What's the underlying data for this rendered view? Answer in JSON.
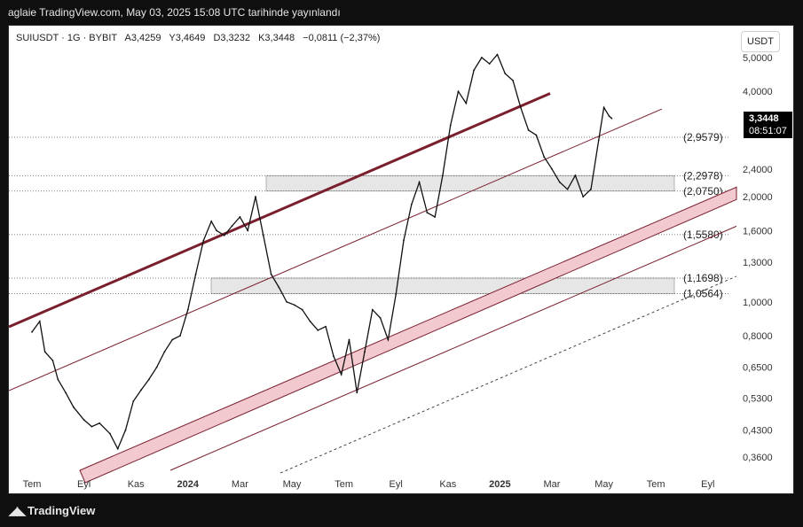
{
  "header": {
    "published": "aglaie TradingView.com, May 03, 2025 15:08 UTC tarihinde yayınlandı"
  },
  "legend": {
    "symbol": "SUIUSDT · 1G · BYBIT",
    "open": "A3,4259",
    "high": "Y3,4649",
    "low": "D3,3232",
    "close": "K3,3448",
    "change": "−0,0811 (−2,37%)"
  },
  "currency_button": "USDT",
  "last_price": {
    "value": "3,3448",
    "countdown": "08:51:07"
  },
  "footer": {
    "brand": "TradingView",
    "logo": "tradingview-logo-icon"
  },
  "colors": {
    "channel_top": "#7a1f2e",
    "band_fill": "#f2c9cf",
    "zone_fill": "#e6e6e6",
    "line": "#7a1f2e"
  },
  "chart_data": {
    "type": "line",
    "title": "",
    "scale": "log",
    "y_ticks": [
      "5,0000",
      "4,0000",
      "2,4000",
      "2,0000",
      "1,6000",
      "1,3000",
      "1,0000",
      "0,8000",
      "0,6500",
      "0,5300",
      "0,4300",
      "0,3600"
    ],
    "y_tick_values": [
      5.0,
      4.0,
      2.4,
      2.0,
      1.6,
      1.3,
      1.0,
      0.8,
      0.65,
      0.53,
      0.43,
      0.36
    ],
    "x_ticks": [
      "Tem",
      "Eyl",
      "Kas",
      "2024",
      "Mar",
      "May",
      "Tem",
      "Eyl",
      "Kas",
      "2025",
      "Mar",
      "May",
      "Tem",
      "Eyl"
    ],
    "x_tick_index": [
      0,
      2,
      4,
      6,
      8,
      10,
      12,
      14,
      16,
      18,
      20,
      22,
      24,
      26
    ],
    "levels": [
      {
        "label": "(2,9579)",
        "value": 2.9579
      },
      {
        "label": "(2,2978)",
        "value": 2.2978
      },
      {
        "label": "(2,0750)",
        "value": 2.075
      },
      {
        "label": "(1,5580)",
        "value": 1.558
      },
      {
        "label": "(1,1698)",
        "value": 1.1698
      },
      {
        "label": "(1,0564)",
        "value": 1.0564
      }
    ],
    "zones": [
      [
        2.075,
        2.2978
      ],
      [
        1.0564,
        1.1698
      ]
    ],
    "series": [
      {
        "x": [
          0,
          0.3,
          0.5,
          0.8,
          1.0,
          1.3,
          1.6,
          2.0,
          2.3,
          2.6,
          3.0,
          3.3,
          3.6,
          3.9,
          4.2,
          4.5,
          4.8,
          5.1,
          5.4,
          5.7,
          6.0,
          6.3,
          6.6,
          6.9,
          7.1,
          7.4,
          7.7,
          8.0,
          8.3,
          8.6,
          8.9,
          9.2,
          9.5,
          9.8,
          10.1,
          10.4,
          10.7,
          11.0,
          11.3,
          11.6,
          11.9,
          12.2,
          12.5,
          12.8,
          13.1,
          13.4,
          13.7,
          14.0,
          14.3,
          14.6,
          14.9,
          15.2,
          15.5,
          15.8,
          16.1,
          16.4,
          16.7,
          17.0,
          17.3,
          17.6,
          17.9,
          18.2,
          18.5,
          18.8,
          19.1,
          19.4,
          19.7,
          20.0,
          20.3,
          20.6,
          20.9,
          21.2,
          21.5,
          21.8,
          22.0,
          22.2,
          22.3
        ],
        "values": [
          0.82,
          0.88,
          0.72,
          0.68,
          0.6,
          0.55,
          0.5,
          0.46,
          0.44,
          0.45,
          0.42,
          0.38,
          0.43,
          0.52,
          0.56,
          0.6,
          0.65,
          0.72,
          0.78,
          0.8,
          0.95,
          1.2,
          1.5,
          1.7,
          1.6,
          1.55,
          1.65,
          1.75,
          1.6,
          2.0,
          1.55,
          1.2,
          1.1,
          1.0,
          0.98,
          0.95,
          0.88,
          0.83,
          0.85,
          0.7,
          0.62,
          0.78,
          0.55,
          0.72,
          0.95,
          0.9,
          0.78,
          1.05,
          1.5,
          1.9,
          2.2,
          1.8,
          1.75,
          2.3,
          3.2,
          4.0,
          3.7,
          4.6,
          5.0,
          4.8,
          5.1,
          4.5,
          4.3,
          3.6,
          3.1,
          3.0,
          2.6,
          2.4,
          2.2,
          2.1,
          2.3,
          2.0,
          2.1,
          2.9,
          3.6,
          3.4,
          3.35
        ]
      }
    ]
  }
}
